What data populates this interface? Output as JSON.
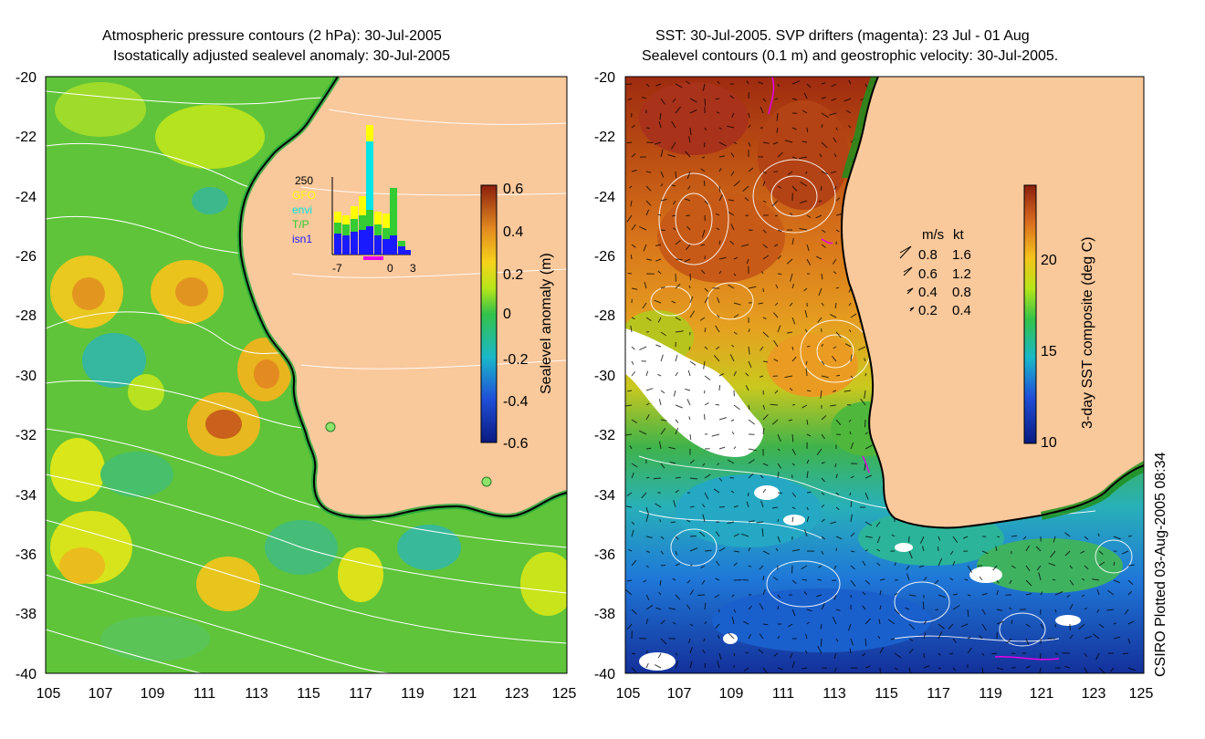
{
  "left_panel": {
    "title_line1": "Atmospheric pressure contours (2 hPa): 30-Jul-2005",
    "title_line2": "Isostatically adjusted sealevel anomaly: 30-Jul-2005",
    "x_ticks": [
      "105",
      "107",
      "109",
      "111",
      "113",
      "115",
      "117",
      "119",
      "121",
      "123",
      "125"
    ],
    "y_ticks": [
      "-20",
      "-22",
      "-24",
      "-26",
      "-28",
      "-30",
      "-32",
      "-34",
      "-36",
      "-38",
      "-40"
    ],
    "colorbar": {
      "label": "Sealevel anomaly (m)",
      "ticks": [
        "0.6",
        "0.4",
        "0.2",
        "0",
        "-0.2",
        "-0.4",
        "-0.6"
      ]
    },
    "inset": {
      "ymax_label": "250",
      "legend": [
        {
          "name": "GFO",
          "color": "#ffff00"
        },
        {
          "name": "envi",
          "color": "#00e5e5"
        },
        {
          "name": "T/P",
          "color": "#33cc33"
        },
        {
          "name": "isn1",
          "color": "#1a1aff"
        }
      ],
      "x_ticks": [
        "-7",
        "0",
        "3"
      ]
    }
  },
  "right_panel": {
    "title_line1": "SST: 30-Jul-2005. SVP drifters (magenta): 23 Jul - 01 Aug",
    "title_line2": "Sealevel contours (0.1 m) and geostrophic velocity: 30-Jul-2005.",
    "x_ticks": [
      "105",
      "107",
      "109",
      "111",
      "113",
      "115",
      "117",
      "119",
      "121",
      "123",
      "125"
    ],
    "y_ticks": [
      "-20",
      "-22",
      "-24",
      "-26",
      "-28",
      "-30",
      "-32",
      "-34",
      "-36",
      "-38",
      "-40"
    ],
    "colorbar": {
      "label": "3-day SST composite (deg C)",
      "ticks": [
        "20",
        "15",
        "10"
      ]
    },
    "velocity_legend": {
      "header_ms": "m/s",
      "header_kt": "kt",
      "rows": [
        {
          "ms": "0.8",
          "kt": "1.6"
        },
        {
          "ms": "0.6",
          "kt": "1.2"
        },
        {
          "ms": "0.4",
          "kt": "0.8"
        },
        {
          "ms": "0.2",
          "kt": "0.4"
        }
      ]
    }
  },
  "credit": "CSIRO Plotted 03-Aug-2005 08:34",
  "colors": {
    "land": "#f9c89b",
    "coast": "#000000",
    "contour": "#ffffff",
    "drifter": "#e800e8"
  }
}
